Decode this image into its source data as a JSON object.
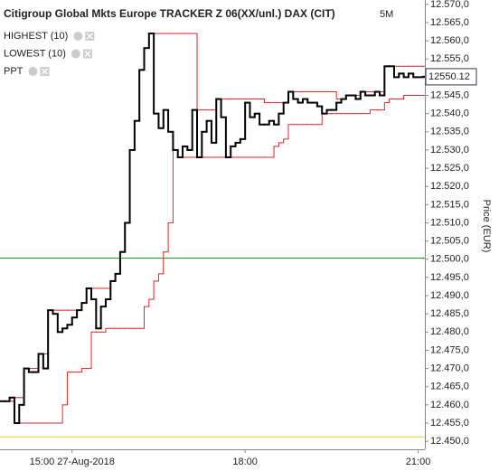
{
  "chart_data": {
    "type": "step",
    "title": "Citigroup Global Mkts Europe TRACKER Z 06(XX/unl.) DAX (CIT)",
    "interval": "5M",
    "y_label": "Price (EUR)",
    "x": [
      "13:45",
      "13:50",
      "13:55",
      "14:00",
      "14:05",
      "14:10",
      "14:15",
      "14:20",
      "14:25",
      "14:30",
      "14:35",
      "14:40",
      "14:45",
      "14:50",
      "14:55",
      "15:00",
      "15:05",
      "15:10",
      "15:15",
      "15:20",
      "15:25",
      "15:30",
      "15:35",
      "15:40",
      "15:45",
      "15:50",
      "15:55",
      "16:00",
      "16:05",
      "16:10",
      "16:15",
      "16:20",
      "16:25",
      "16:30",
      "16:35",
      "16:40",
      "16:45",
      "16:50",
      "16:55",
      "17:00",
      "17:05",
      "17:10",
      "17:15",
      "17:20",
      "17:25",
      "17:30",
      "17:35",
      "17:40",
      "17:45",
      "17:50",
      "17:55",
      "18:00",
      "18:05",
      "18:10",
      "18:15",
      "18:20",
      "18:25",
      "18:30",
      "18:35",
      "18:40",
      "18:45",
      "18:50",
      "18:55",
      "19:00",
      "19:05",
      "19:10",
      "19:15",
      "19:20",
      "19:25",
      "19:30",
      "19:35",
      "19:40",
      "19:45",
      "19:50",
      "19:55",
      "20:00",
      "20:05",
      "20:10",
      "20:15",
      "20:20",
      "20:25",
      "20:30",
      "20:35",
      "20:40",
      "20:45",
      "20:50",
      "20:55",
      "21:00",
      "21:05"
    ],
    "series": [
      {
        "name": "HIGHEST (10)",
        "color": "#e32626",
        "width": 1,
        "values": [
          12461,
          12461,
          12462,
          12462,
          12462,
          12470,
          12470,
          12470,
          12474,
          12474,
          12486,
          12486,
          12486,
          12486,
          12486,
          12486,
          12486,
          12488,
          12492,
          12492,
          12492,
          12492,
          12492,
          12494,
          12496,
          12502,
          12510,
          12530,
          12538,
          12552,
          12558,
          12562,
          12562,
          12562,
          12562,
          12562,
          12562,
          12562,
          12562,
          12562,
          12562,
          12541,
          12541,
          12541,
          12541,
          12544,
          12544,
          12544,
          12544,
          12544,
          12544,
          12544,
          12544,
          12544,
          12544,
          12543,
          12543,
          12543,
          12543,
          12543,
          12546,
          12546,
          12546,
          12546,
          12546,
          12546,
          12546,
          12546,
          12546,
          12546,
          12544,
          12544,
          12545,
          12545,
          12545,
          12546,
          12546,
          12546,
          12546,
          12546,
          12553,
          12553,
          12553,
          12553,
          12553,
          12553,
          12553,
          12553,
          12553
        ]
      },
      {
        "name": "LOWEST (10)",
        "color": "#e32626",
        "width": 1,
        "values": [
          12461,
          12461,
          12461,
          12455,
          12455,
          12455,
          12455,
          12455,
          12455,
          12455,
          12455,
          12455,
          12455,
          12460,
          12469,
          12469,
          12469,
          12470,
          12470,
          12480,
          12480,
          12480,
          12481,
          12481,
          12481,
          12481,
          12481,
          12481,
          12481,
          12481,
          12487,
          12489,
          12494,
          12496,
          12502,
          12510,
          12530,
          12528,
          12528,
          12528,
          12528,
          12528,
          12528,
          12528,
          12528,
          12528,
          12528,
          12528,
          12528,
          12528,
          12528,
          12528,
          12528,
          12528,
          12528,
          12528,
          12528,
          12531,
          12532,
          12533,
          12537,
          12537,
          12537,
          12537,
          12537,
          12537,
          12537,
          12540,
          12540,
          12540,
          12540,
          12540,
          12540,
          12540,
          12540,
          12540,
          12540,
          12541,
          12541,
          12541,
          12543,
          12544,
          12544,
          12544,
          12545,
          12545,
          12545,
          12545,
          12545
        ]
      },
      {
        "name": "PPT",
        "color": "#000000",
        "width": 2,
        "values": [
          12461,
          12461,
          12462,
          12455,
          12460,
          12470,
          12469,
          12469,
          12474,
          12470,
          12486,
          12485,
          12480,
          12481,
          12482,
          12484,
          12486,
          12488,
          12492,
          12489,
          12481,
          12487,
          12489,
          12494,
          12496,
          12502,
          12510,
          12530,
          12538,
          12552,
          12558,
          12562,
          12540,
          12536,
          12541,
          12535,
          12530,
          12528,
          12531,
          12530,
          12541,
          12528,
          12535,
          12538,
          12532,
          12544,
          12539,
          12528,
          12531,
          12532,
          12533,
          12543,
          12539,
          12540,
          12537,
          12537,
          12538,
          12537,
          12540,
          12543,
          12546,
          12544,
          12543,
          12544,
          12543,
          12543,
          12542,
          12540,
          12541,
          12541,
          12543,
          12544,
          12545,
          12545,
          12544,
          12546,
          12545,
          12545,
          12546,
          12545,
          12553,
          12553,
          12550,
          12551,
          12550,
          12551,
          12550,
          12550,
          12550.12
        ]
      }
    ],
    "reference_lines": [
      {
        "value": 12500.3,
        "color": "#2ca02c"
      },
      {
        "value": 12451.2,
        "color": "#e8e030"
      }
    ],
    "xlim": [
      "13:45",
      "21:07"
    ],
    "xticks": [
      {
        "value": "15:00",
        "label": "15:00 27-Aug-2018"
      },
      "18:00",
      "21:00"
    ],
    "ylim": [
      12447.8,
      12571.2
    ],
    "yticks": [
      {
        "value": 12450,
        "label": "12.450,0"
      },
      {
        "value": 12455,
        "label": "12.455,0"
      },
      {
        "value": 12460,
        "label": "12.460,0"
      },
      {
        "value": 12465,
        "label": "12.465,0"
      },
      {
        "value": 12470,
        "label": "12.470,0"
      },
      {
        "value": 12475,
        "label": "12.475,0"
      },
      {
        "value": 12480,
        "label": "12.480,0"
      },
      {
        "value": 12485,
        "label": "12.485,0"
      },
      {
        "value": 12490,
        "label": "12.490,0"
      },
      {
        "value": 12495,
        "label": "12.495,0"
      },
      {
        "value": 12500,
        "label": "12.500,0"
      },
      {
        "value": 12505,
        "label": "12.505,0"
      },
      {
        "value": 12510,
        "label": "12.510,0"
      },
      {
        "value": 12515,
        "label": "12.515,0"
      },
      {
        "value": 12520,
        "label": "12.520,0"
      },
      {
        "value": 12525,
        "label": "12.525,0"
      },
      {
        "value": 12530,
        "label": "12.530,0"
      },
      {
        "value": 12535,
        "label": "12.535,0"
      },
      {
        "value": 12540,
        "label": "12.540,0"
      },
      {
        "value": 12545,
        "label": "12.545,0"
      },
      {
        "value": 12550,
        "label": "12.550,0"
      },
      {
        "value": 12555,
        "label": "12.555,0"
      },
      {
        "value": 12560,
        "label": "12.560,0"
      },
      {
        "value": 12565,
        "label": "12.565,0"
      },
      {
        "value": 12570,
        "label": "12.570,0"
      }
    ],
    "legend": "top-left"
  }
}
